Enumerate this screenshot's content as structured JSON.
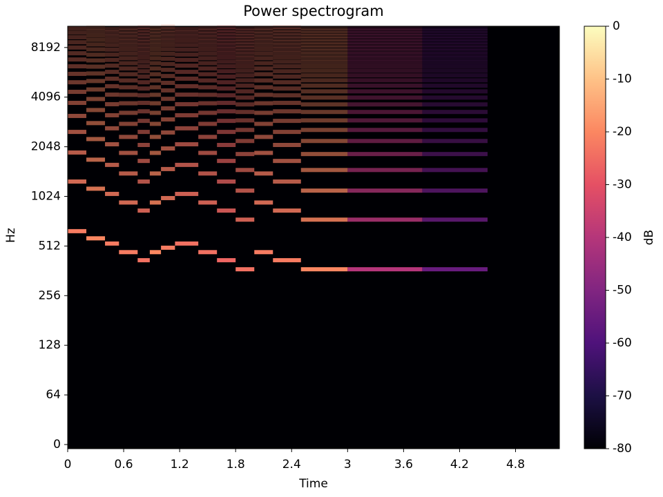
{
  "chart_data": {
    "type": "spectrogram",
    "title": "Power spectrogram",
    "x_label": "Time",
    "y_label": "Hz",
    "colorbar_label": "dB",
    "xlim": [
      0,
      5.27
    ],
    "xticks": [
      0,
      0.6,
      1.2,
      1.8,
      2.4,
      3,
      3.6,
      4.2,
      4.8
    ],
    "ylim": [
      0,
      11025
    ],
    "yscale": "symlog",
    "linthresh": 64,
    "yticks": [
      0,
      64,
      128,
      256,
      512,
      1024,
      2048,
      4096,
      8192
    ],
    "clim": [
      -80,
      0
    ],
    "cticks": [
      0,
      -10,
      -20,
      -30,
      -40,
      -50,
      -60,
      -70,
      -80
    ],
    "colormap": [
      "#000004",
      "#1c1044",
      "#4f127b",
      "#812581",
      "#b5367a",
      "#e55064",
      "#fb8761",
      "#fec287",
      "#fcfdbf"
    ],
    "notes": [
      {
        "start": 0.0,
        "end": 0.2,
        "frequency": 630,
        "db": -22
      },
      {
        "start": 0.2,
        "end": 0.4,
        "frequency": 570,
        "db": -20
      },
      {
        "start": 0.4,
        "end": 0.55,
        "frequency": 530,
        "db": -22
      },
      {
        "start": 0.55,
        "end": 0.75,
        "frequency": 470,
        "db": -22
      },
      {
        "start": 0.75,
        "end": 0.88,
        "frequency": 420,
        "db": -24
      },
      {
        "start": 0.88,
        "end": 1.0,
        "frequency": 470,
        "db": -20
      },
      {
        "start": 1.0,
        "end": 1.15,
        "frequency": 500,
        "db": -22
      },
      {
        "start": 1.15,
        "end": 1.4,
        "frequency": 530,
        "db": -24
      },
      {
        "start": 1.4,
        "end": 1.6,
        "frequency": 470,
        "db": -24
      },
      {
        "start": 1.6,
        "end": 1.8,
        "frequency": 420,
        "db": -26
      },
      {
        "start": 1.8,
        "end": 2.0,
        "frequency": 370,
        "db": -24
      },
      {
        "start": 2.0,
        "end": 2.2,
        "frequency": 470,
        "db": -22
      },
      {
        "start": 2.2,
        "end": 2.5,
        "frequency": 420,
        "db": -22
      },
      {
        "start": 2.5,
        "end": 3.0,
        "frequency": 370,
        "db": -20
      },
      {
        "start": 3.0,
        "end": 3.8,
        "frequency": 370,
        "db": -40
      },
      {
        "start": 3.8,
        "end": 4.5,
        "frequency": 370,
        "db": -55
      }
    ]
  }
}
